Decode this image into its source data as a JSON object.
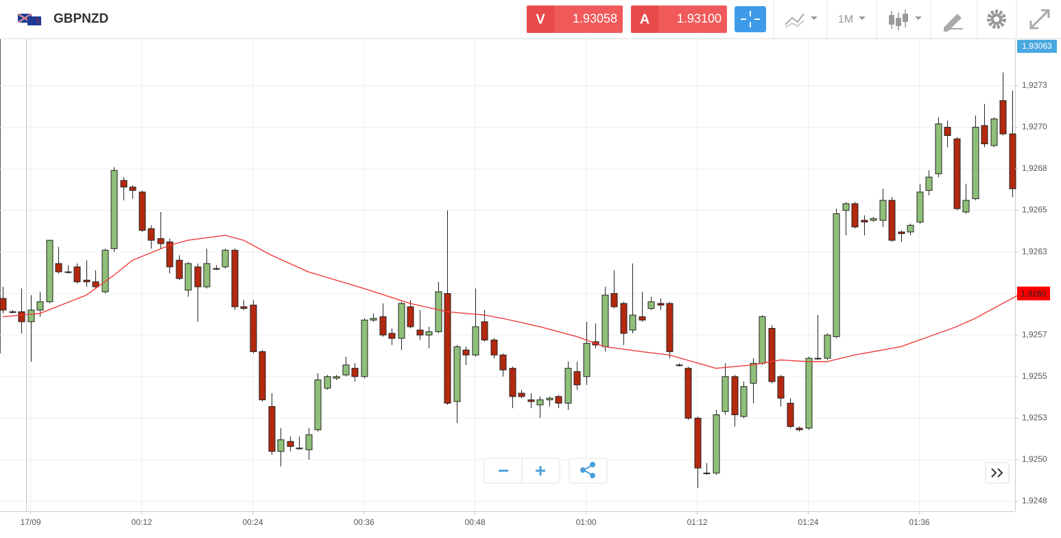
{
  "header": {
    "symbol": "GBPNZD",
    "sell_label": "V",
    "sell_price": "1.93058",
    "buy_label": "A",
    "buy_price": "1.93100",
    "timeframe": "1M"
  },
  "chart_data": {
    "type": "candlestick",
    "x": [
      -3,
      -2,
      -1,
      0,
      1,
      2,
      3,
      4,
      5,
      6,
      7,
      8,
      9,
      10,
      11,
      12,
      13,
      14,
      15,
      16,
      17,
      18,
      19,
      20,
      21,
      22,
      23,
      24,
      25,
      26,
      27,
      28,
      29,
      30,
      31,
      32,
      33,
      34,
      35,
      36,
      37,
      38,
      39,
      40,
      41,
      42,
      43,
      44,
      45,
      46,
      47,
      48,
      49,
      50,
      51,
      52,
      53,
      54,
      55,
      56,
      57,
      58,
      59,
      60,
      61,
      62,
      63,
      64,
      65,
      66,
      67,
      68,
      69,
      70,
      71,
      72,
      73,
      74,
      75,
      76,
      77,
      78,
      79,
      80,
      81,
      82,
      83,
      84,
      85,
      86,
      87,
      88,
      89,
      90,
      91,
      92,
      93,
      94,
      95,
      96,
      97,
      98,
      99,
      100,
      101,
      102,
      103,
      104,
      105,
      106
    ],
    "open": [
      1.92597,
      1.92589,
      1.92589,
      1.92583,
      1.9259,
      1.92595,
      1.92618,
      1.92613,
      1.92616,
      1.92608,
      1.92607,
      1.92601,
      1.92627,
      1.92668,
      1.92664,
      1.92661,
      1.92639,
      1.92633,
      1.92631,
      1.9262,
      1.92602,
      1.92616,
      1.92604,
      1.92615,
      1.92616,
      1.92626,
      1.92592,
      1.92593,
      1.92565,
      1.92532,
      1.92505,
      1.92511,
      1.92507,
      1.92506,
      1.92518,
      1.92543,
      1.92549,
      1.92551,
      1.92555,
      1.9255,
      1.92584,
      1.92586,
      1.92576,
      1.92573,
      1.92592,
      1.92578,
      1.92575,
      1.92577,
      1.926,
      1.92535,
      1.92566,
      1.92563,
      1.92583,
      1.92572,
      1.92563,
      1.92555,
      1.9254,
      1.92536,
      1.92533,
      1.92536,
      1.92538,
      1.92534,
      1.92553,
      1.9255,
      1.92571,
      1.92568,
      1.926,
      1.92594,
      1.92578,
      1.92586,
      1.92591,
      1.92594,
      1.92594,
      1.92557,
      1.92555,
      1.92525,
      1.92492,
      1.92492,
      1.92529,
      1.9255,
      1.92526,
      1.92546,
      1.92558,
      1.92579,
      1.9255,
      1.92534,
      1.92519,
      1.92519,
      1.92561,
      1.92561,
      1.92574,
      1.9265,
      1.92654,
      1.92644,
      1.92644,
      1.92644,
      1.92656,
      1.92637,
      1.92637,
      1.92643,
      1.92662,
      1.92672,
      1.927,
      1.92693,
      1.92649,
      1.92657,
      1.92701,
      1.92689,
      1.92716,
      1.92696
    ],
    "high": [
      1.92604,
      1.9259,
      1.92603,
      1.92599,
      1.92601,
      1.92632,
      1.92628,
      1.92617,
      1.92618,
      1.9262,
      1.92614,
      1.92627,
      1.92676,
      1.9267,
      1.92665,
      1.92662,
      1.92641,
      1.92649,
      1.92633,
      1.92623,
      1.92619,
      1.92618,
      1.92627,
      1.92617,
      1.92627,
      1.92627,
      1.92596,
      1.92596,
      1.92566,
      1.9254,
      1.92519,
      1.92514,
      1.92514,
      1.92519,
      1.92552,
      1.92551,
      1.92551,
      1.92562,
      1.92558,
      1.92585,
      1.92588,
      1.92594,
      1.92579,
      1.92595,
      1.92596,
      1.9259,
      1.9258,
      1.92607,
      1.9265,
      1.92569,
      1.92568,
      1.92603,
      1.9259,
      1.92573,
      1.92564,
      1.92556,
      1.92542,
      1.9254,
      1.92538,
      1.92538,
      1.92539,
      1.92559,
      1.92559,
      1.92583,
      1.92582,
      1.92604,
      1.92614,
      1.92595,
      1.92618,
      1.92601,
      1.92598,
      1.92597,
      1.92595,
      1.92558,
      1.92556,
      1.92526,
      1.92498,
      1.9253,
      1.92558,
      1.92551,
      1.92547,
      1.92561,
      1.92587,
      1.92581,
      1.92551,
      1.92537,
      1.9252,
      1.92562,
      1.92587,
      1.92576,
      1.92651,
      1.92655,
      1.92655,
      1.92647,
      1.92646,
      1.92663,
      1.92658,
      1.92638,
      1.92642,
      1.92666,
      1.92674,
      1.92706,
      1.92704,
      1.92694,
      1.92666,
      1.92707,
      1.92714,
      1.92706,
      1.92733,
      1.92722
    ],
    "low": [
      1.92588,
      1.92588,
      1.92576,
      1.92559,
      1.92586,
      1.92594,
      1.92612,
      1.92612,
      1.92606,
      1.92604,
      1.92603,
      1.926,
      1.92625,
      1.92656,
      1.92657,
      1.92637,
      1.92627,
      1.92627,
      1.92612,
      1.92608,
      1.92598,
      1.92583,
      1.92603,
      1.92614,
      1.92615,
      1.9259,
      1.9259,
      1.92564,
      1.92535,
      1.92503,
      1.92496,
      1.92505,
      1.92506,
      1.925,
      1.92517,
      1.92542,
      1.92548,
      1.9255,
      1.92547,
      1.92549,
      1.92583,
      1.92574,
      1.92569,
      1.92566,
      1.92579,
      1.92572,
      1.92567,
      1.92576,
      1.92533,
      1.92522,
      1.92557,
      1.92562,
      1.92571,
      1.92561,
      1.9255,
      1.92531,
      1.92537,
      1.92531,
      1.92525,
      1.92532,
      1.92531,
      1.9253,
      1.92542,
      1.92545,
      1.92567,
      1.92565,
      1.92591,
      1.92569,
      1.92576,
      1.92583,
      1.9259,
      1.9259,
      1.92561,
      1.92556,
      1.92524,
      1.92483,
      1.92491,
      1.92491,
      1.92527,
      1.9252,
      1.92525,
      1.92534,
      1.92557,
      1.92546,
      1.92532,
      1.92519,
      1.92517,
      1.92518,
      1.9256,
      1.9256,
      1.92573,
      1.92635,
      1.92639,
      1.92635,
      1.92643,
      1.9264,
      1.92631,
      1.92631,
      1.92635,
      1.92642,
      1.92659,
      1.9267,
      1.92688,
      1.9265,
      1.92648,
      1.92656,
      1.92688,
      1.92688,
      1.92695,
      1.92658
    ],
    "close": [
      1.9259,
      1.92589,
      1.92583,
      1.9259,
      1.92595,
      1.92632,
      1.92613,
      1.92613,
      1.92607,
      1.92607,
      1.92604,
      1.92626,
      1.92674,
      1.92664,
      1.92662,
      1.92638,
      1.92632,
      1.9263,
      1.92616,
      1.92609,
      1.92618,
      1.92604,
      1.92618,
      1.92615,
      1.92626,
      1.92592,
      1.92591,
      1.92565,
      1.92536,
      1.92505,
      1.92512,
      1.92508,
      1.92507,
      1.92515,
      1.92548,
      1.9255,
      1.9255,
      1.92557,
      1.9255,
      1.92584,
      1.92585,
      1.92575,
      1.92573,
      1.92594,
      1.9258,
      1.92575,
      1.92577,
      1.92601,
      1.92534,
      1.92568,
      1.92563,
      1.9258,
      1.92572,
      1.92563,
      1.92554,
      1.92538,
      1.92538,
      1.92535,
      1.92536,
      1.92537,
      1.92534,
      1.92555,
      1.92545,
      1.9257,
      1.92569,
      1.92599,
      1.92592,
      1.92576,
      1.92587,
      1.92584,
      1.92595,
      1.92593,
      1.92565,
      1.92557,
      1.92525,
      1.92495,
      1.92492,
      1.92527,
      1.9255,
      1.92527,
      1.92544,
      1.92558,
      1.92586,
      1.92547,
      1.92537,
      1.9252,
      1.92518,
      1.92561,
      1.92561,
      1.92575,
      1.92648,
      1.92654,
      1.9264,
      1.92643,
      1.92645,
      1.92656,
      1.92632,
      1.92636,
      1.92641,
      1.92661,
      1.9267,
      1.92702,
      1.92695,
      1.92651,
      1.92656,
      1.927,
      1.9269,
      1.92705,
      1.92696,
      1.92663
    ],
    "up_color": "#8fbf78",
    "down_color": "#b3290f",
    "moving_average": {
      "color": "#f03a3a",
      "x": [
        -3,
        1,
        6,
        9,
        11,
        15,
        17,
        21,
        23,
        26,
        30,
        36,
        41,
        45,
        49,
        51,
        55,
        59,
        62,
        66,
        69,
        74,
        78,
        81,
        84,
        86,
        89,
        94,
        97,
        100,
        102,
        104,
        107
      ],
      "values": [
        1.92586,
        1.92588,
        1.92599,
        1.92611,
        1.9262,
        1.92629,
        1.92632,
        1.92635,
        1.92632,
        1.92623,
        1.92613,
        1.92603,
        1.92594,
        1.92589,
        1.92587,
        1.92585,
        1.9258,
        1.92574,
        1.92568,
        1.92565,
        1.92563,
        1.92555,
        1.92557,
        1.9256,
        1.92559,
        1.92559,
        1.92563,
        1.92568,
        1.92574,
        1.9258,
        1.92585,
        1.92591,
        1.926
      ]
    },
    "xlim": [
      -3.31,
      106.33
    ],
    "xticks": [
      {
        "value": 0,
        "label": "17/09"
      },
      {
        "value": 12,
        "label": "00:12"
      },
      {
        "value": 24,
        "label": "00:24"
      },
      {
        "value": 36,
        "label": "00:36"
      },
      {
        "value": 48,
        "label": "00:48"
      },
      {
        "value": 60,
        "label": "01:00"
      },
      {
        "value": 72,
        "label": "01:12"
      },
      {
        "value": 84,
        "label": "01:24"
      },
      {
        "value": 96,
        "label": "01:36"
      }
    ],
    "ylim": [
      1.92469,
      1.92753
    ],
    "yticks": [
      {
        "value": 1.92475,
        "label": "1,9248"
      },
      {
        "value": 1.925,
        "label": "1,9250"
      },
      {
        "value": 1.92525,
        "label": "1,9253"
      },
      {
        "value": 1.9255,
        "label": "1,9255"
      },
      {
        "value": 1.92575,
        "label": "1,9257"
      },
      {
        "value": 1.926,
        "label": "1,9260"
      },
      {
        "value": 1.92625,
        "label": "1,9263"
      },
      {
        "value": 1.9265,
        "label": "1,9265"
      },
      {
        "value": 1.92675,
        "label": "1,9268"
      },
      {
        "value": 1.927,
        "label": "1,9270"
      },
      {
        "value": 1.92725,
        "label": "1,9273"
      }
    ],
    "grid": true,
    "last_price": {
      "value": 1.926,
      "label": "1,9260",
      "color": "#ff0000"
    },
    "ask_tag": {
      "label": "1,93063",
      "color": "#4aa8e0"
    }
  }
}
